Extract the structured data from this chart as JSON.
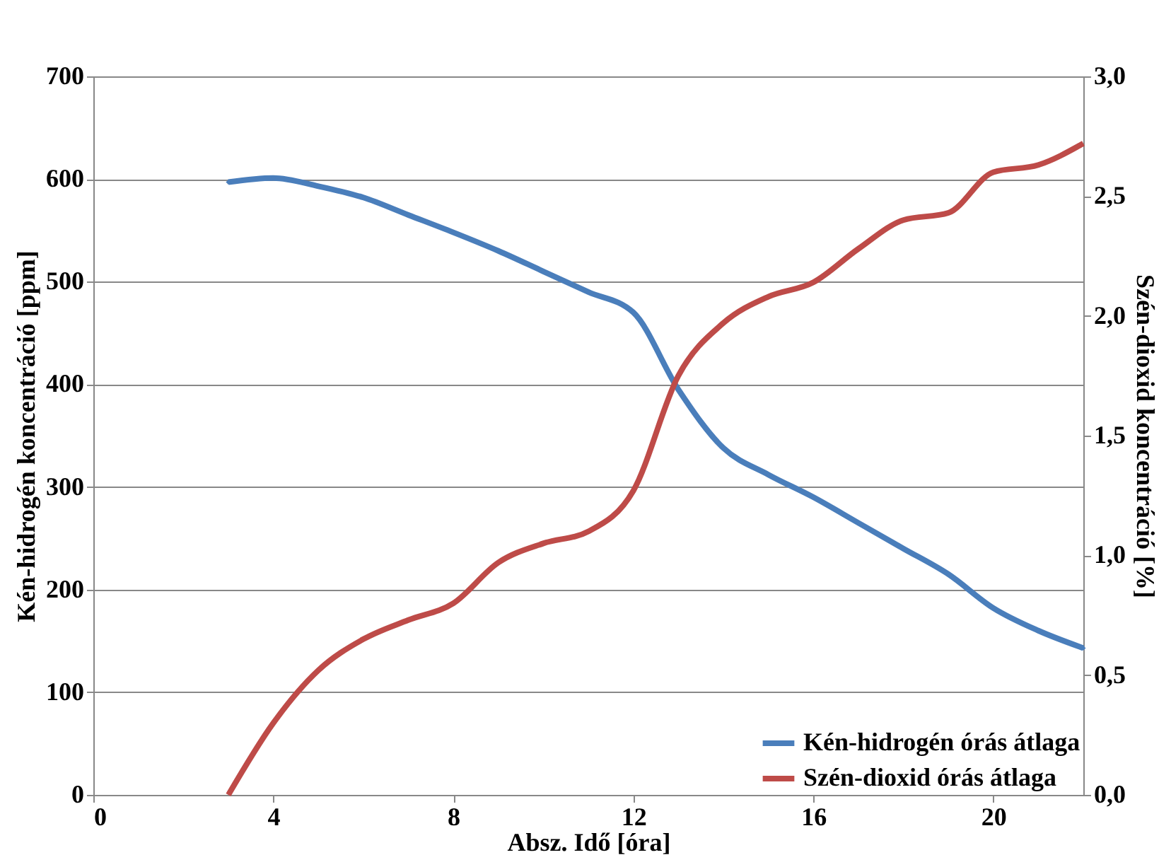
{
  "chart_data": {
    "type": "line",
    "xlabel": "Absz. Idő [óra]",
    "ylabel": "Kén-hidrogén koncentráció [ppm]",
    "y2label": "Szén-dioxid koncentráció [%]",
    "x": [
      3,
      4,
      5,
      6,
      7,
      8,
      9,
      10,
      11,
      12,
      13,
      14,
      15,
      16,
      17,
      18,
      19,
      20,
      21,
      22
    ],
    "series": [
      {
        "name": "Kén-hidrogén órás átlaga",
        "color": "#4a7ebb",
        "marker": "diamond",
        "values": [
          597,
          601,
          593,
          582,
          565,
          548,
          530,
          510,
          490,
          470,
          395,
          338,
          312,
          290,
          265,
          240,
          215,
          182,
          160,
          143
        ]
      },
      {
        "name": "Szén-dioxid órás átlaga",
        "color": "#be4b48",
        "axis": "y2",
        "values": [
          0,
          0.3,
          0.52,
          0.65,
          0.73,
          0.8,
          0.97,
          1.05,
          1.1,
          1.27,
          1.75,
          1.97,
          2.08,
          2.14,
          2.28,
          2.4,
          2.43,
          2.6,
          2.63,
          2.72
        ]
      }
    ],
    "xlim": [
      0,
      22
    ],
    "xticks": [
      0,
      4,
      8,
      12,
      16,
      20
    ],
    "ylim": [
      0,
      700
    ],
    "yticks": [
      0,
      100,
      200,
      300,
      400,
      500,
      600,
      700
    ],
    "y2lim": [
      0,
      3
    ],
    "y2ticks": [
      {
        "value": 0,
        "label": "0,0"
      },
      {
        "value": 0.5,
        "label": "0,5"
      },
      {
        "value": 1,
        "label": "1,0"
      },
      {
        "value": 1.5,
        "label": "1,5"
      },
      {
        "value": 2,
        "label": "2,0"
      },
      {
        "value": 2.5,
        "label": "2,5"
      },
      {
        "value": 3,
        "label": "3,0"
      }
    ],
    "grid": "y",
    "legend": "bottom right",
    "line_style": "solid"
  }
}
